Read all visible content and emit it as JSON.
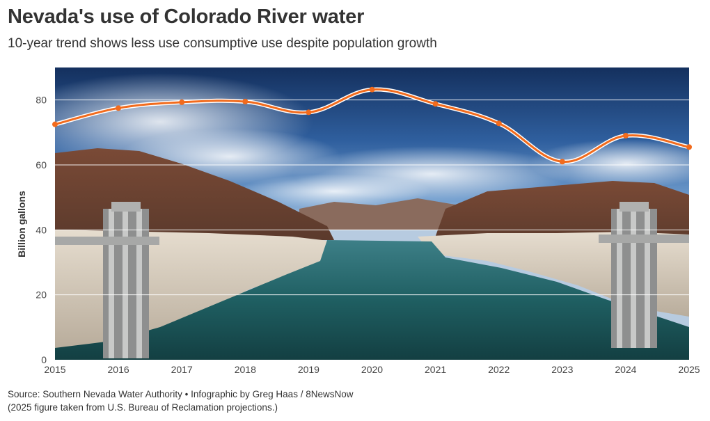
{
  "header": {
    "title": "Nevada's use of Colorado River water",
    "subtitle": "10-year trend shows less use consumptive use despite population growth"
  },
  "chart_data": {
    "type": "line",
    "title": "Nevada's use of Colorado River water",
    "subtitle": "10-year trend shows less use consumptive use despite population growth",
    "xlabel": "",
    "ylabel": "Billion gallons",
    "x": [
      2015,
      2016,
      2017,
      2018,
      2019,
      2020,
      2021,
      2022,
      2023,
      2024,
      2025
    ],
    "series": [
      {
        "values": [
          72.5,
          77.5,
          79.3,
          79.5,
          76.2,
          83.2,
          78.8,
          72.8,
          61.0,
          69.0,
          65.5
        ]
      }
    ],
    "xlim": [
      2015,
      2025
    ],
    "ylim": [
      0,
      90
    ],
    "yticks": [
      0,
      20,
      40,
      60,
      80
    ],
    "grid": true,
    "line_color": "#f26b1d",
    "background": "photo of Lake Mead and Hoover Dam intake towers"
  },
  "footer": {
    "source": "Source: Southern Nevada Water Authority • Infographic by Greg Haas / 8NewsNow",
    "note": "(2025 figure taken from U.S. Bureau of Reclamation projections.)"
  }
}
